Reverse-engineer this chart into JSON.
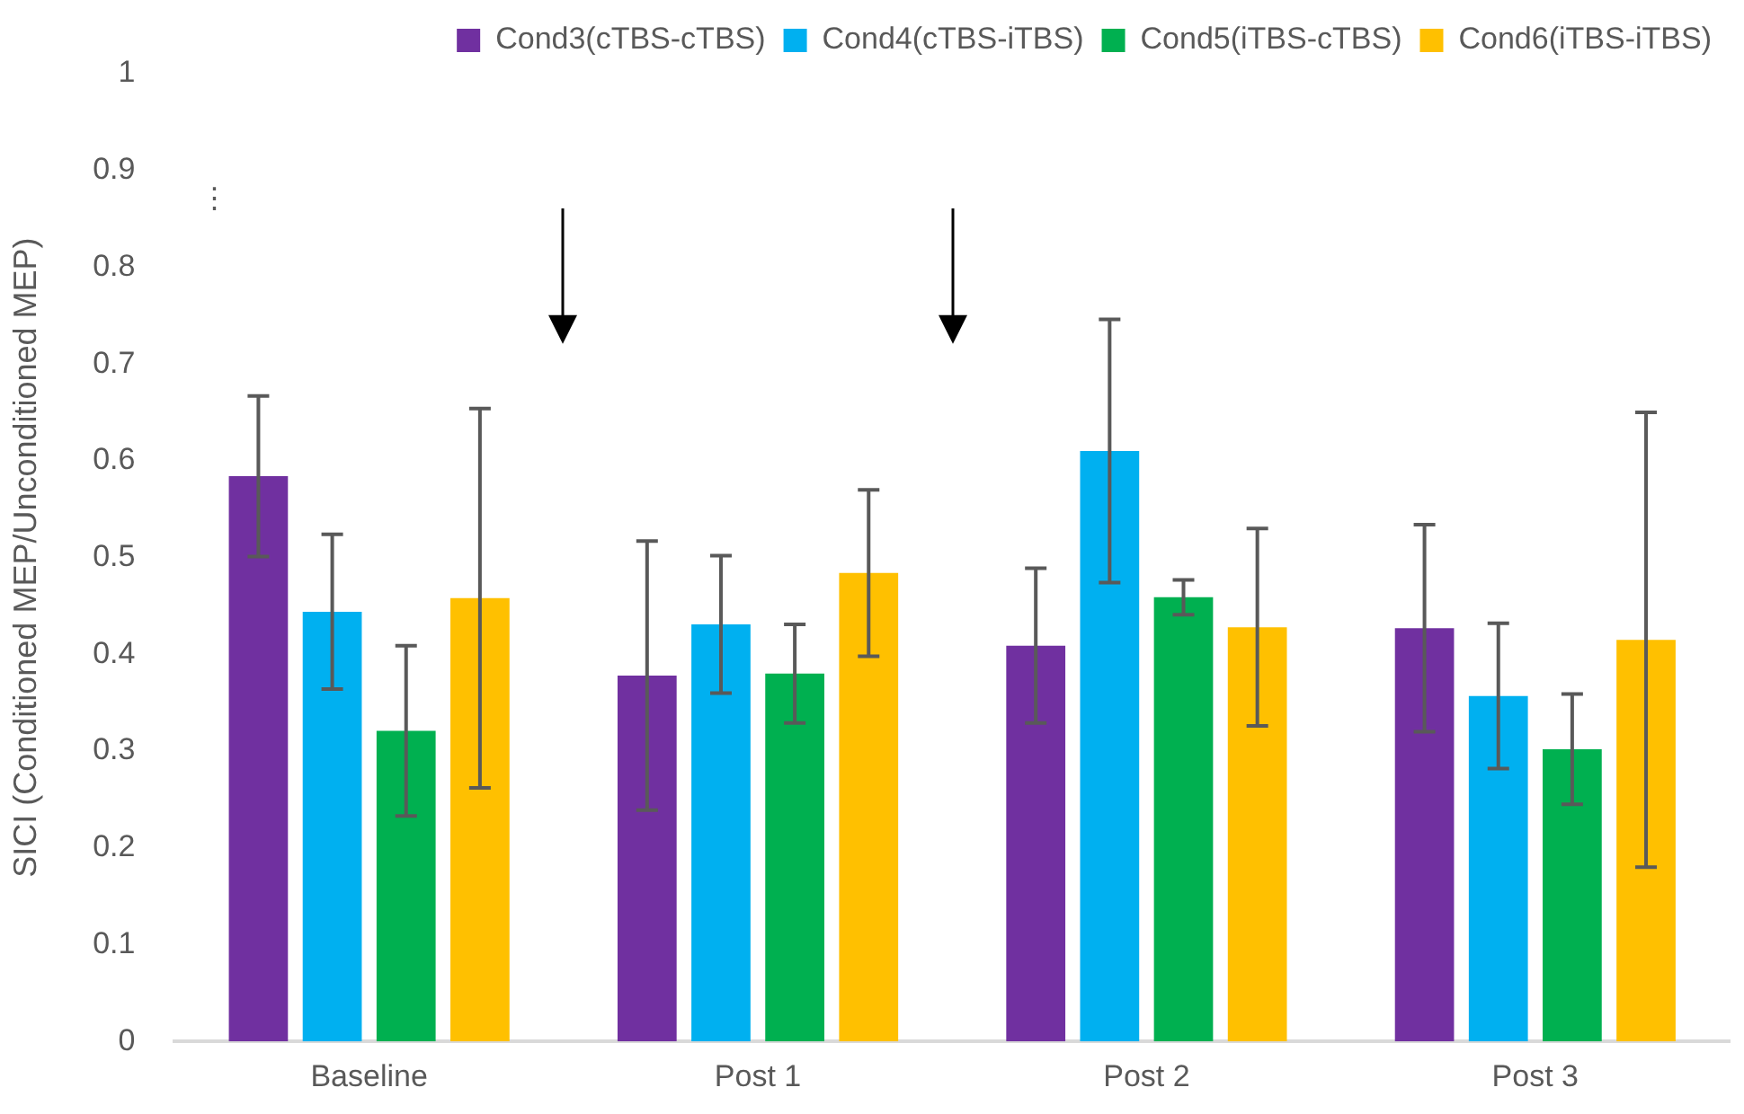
{
  "chart_data": {
    "type": "bar",
    "ylabel": "SICI (Conditioned MEP/Unconditioned MEP)",
    "categories": [
      "Baseline",
      "Post 1",
      "Post 2",
      "Post 3"
    ],
    "series": [
      {
        "name": "Cond3(cTBS-cTBS)",
        "color": "#7030a0",
        "values": [
          0.584,
          0.378,
          0.409,
          0.427
        ],
        "errors": [
          0.083,
          0.139,
          0.08,
          0.107
        ]
      },
      {
        "name": "Cond4(cTBS-iTBS)",
        "color": "#00b0f0",
        "values": [
          0.444,
          0.431,
          0.61,
          0.357
        ],
        "errors": [
          0.08,
          0.071,
          0.136,
          0.075
        ]
      },
      {
        "name": "Cond5(iTBS-cTBS)",
        "color": "#00b050",
        "values": [
          0.321,
          0.38,
          0.459,
          0.302
        ],
        "errors": [
          0.088,
          0.051,
          0.018,
          0.057
        ]
      },
      {
        "name": "Cond6(iTBS-iTBS)",
        "color": "#ffc000",
        "values": [
          0.458,
          0.484,
          0.428,
          0.415
        ],
        "errors": [
          0.196,
          0.086,
          0.102,
          0.235
        ]
      }
    ],
    "ylim": [
      0,
      1
    ],
    "yticks": [
      0,
      0.1,
      0.2,
      0.3,
      0.4,
      0.5,
      0.6,
      0.7,
      0.8,
      0.9,
      1
    ],
    "grid": false,
    "legend": "top",
    "annotations": [
      "⋮"
    ]
  }
}
